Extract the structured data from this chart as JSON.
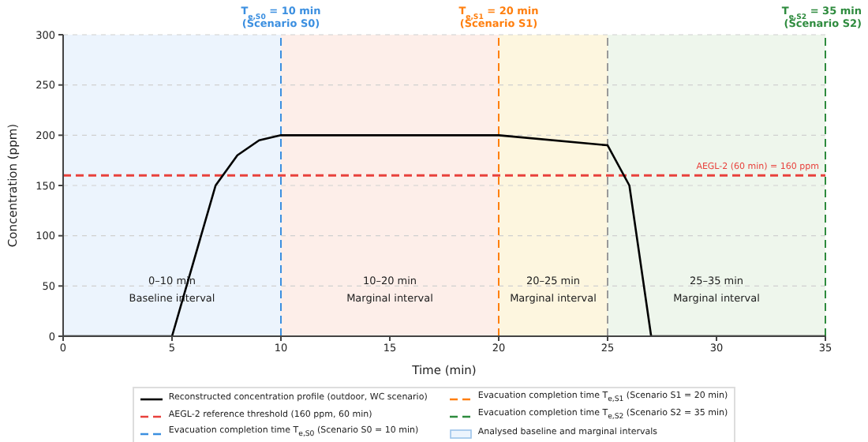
{
  "chart_data": {
    "type": "line",
    "xlabel": "Time (min)",
    "ylabel": "Concentration (ppm)",
    "x": [
      0,
      5,
      7,
      8,
      9,
      10,
      20,
      25,
      26,
      27,
      35
    ],
    "series": [
      {
        "name": "Reconstructed concentration profile (outdoor, WC scenario)",
        "color": "#000000",
        "values": [
          0,
          0,
          150,
          180,
          195,
          200,
          200,
          190,
          150,
          0,
          0
        ]
      }
    ],
    "xlim": [
      0,
      35
    ],
    "xticks": [
      0,
      5,
      10,
      15,
      20,
      25,
      30,
      35
    ],
    "ylim": [
      0,
      300
    ],
    "yticks": [
      0,
      50,
      100,
      150,
      200,
      250,
      300
    ],
    "grid": "y",
    "marker": "none",
    "line_style": "solid",
    "legend": "bottom",
    "ref_lines": [
      {
        "axis": "y",
        "value": 160,
        "label": "AEGL-2 (60 min) = 160 ppm",
        "color": "#e8413c",
        "line_style": "dashed"
      },
      {
        "axis": "x",
        "value": 10,
        "label": "T$_{e,S0}$ = 10 min\n(Scenario S0)",
        "color": "#3b8fe0",
        "line_style": "dashed"
      },
      {
        "axis": "x",
        "value": 20,
        "label": "T$_{e,S1}$ = 20 min\n(Scenario S1)",
        "color": "#ff7f0e",
        "line_style": "dashed"
      },
      {
        "axis": "x",
        "value": 25,
        "color": "#999999",
        "line_style": "dashed"
      },
      {
        "axis": "x",
        "value": 35,
        "label": "T$_{e,S2}$ = 35 min\n(Scenario S2)",
        "color": "#2e8b3e",
        "line_style": "dashed"
      }
    ],
    "bands": [
      {
        "axis": "x",
        "from": 0,
        "to": 10,
        "label": "0–10 min\nBaseline interval",
        "color": "#ecf4fd"
      },
      {
        "axis": "x",
        "from": 10,
        "to": 20,
        "label": "10–20 min\nMarginal interval",
        "color": "#fdeee9"
      },
      {
        "axis": "x",
        "from": 20,
        "to": 25,
        "label": "20–25 min\nMarginal interval",
        "color": "#fdf6df"
      },
      {
        "axis": "x",
        "from": 25,
        "to": 35,
        "label": "25–35 min\nMarginal interval",
        "color": "#eef6ec"
      }
    ],
    "annotations": [
      "AEGL-2 reference threshold (160 ppm, 60 min)",
      "Evacuation completion time T$_{e,S0}$ (Scenario S0 = 10 min)",
      "Evacuation completion time T$_{e,S1}$ (Scenario S1 = 20 min)",
      "Evacuation completion time T$_{e,S2}$ (Scenario S2 = 35 min)",
      "Analysed baseline and marginal intervals"
    ]
  }
}
